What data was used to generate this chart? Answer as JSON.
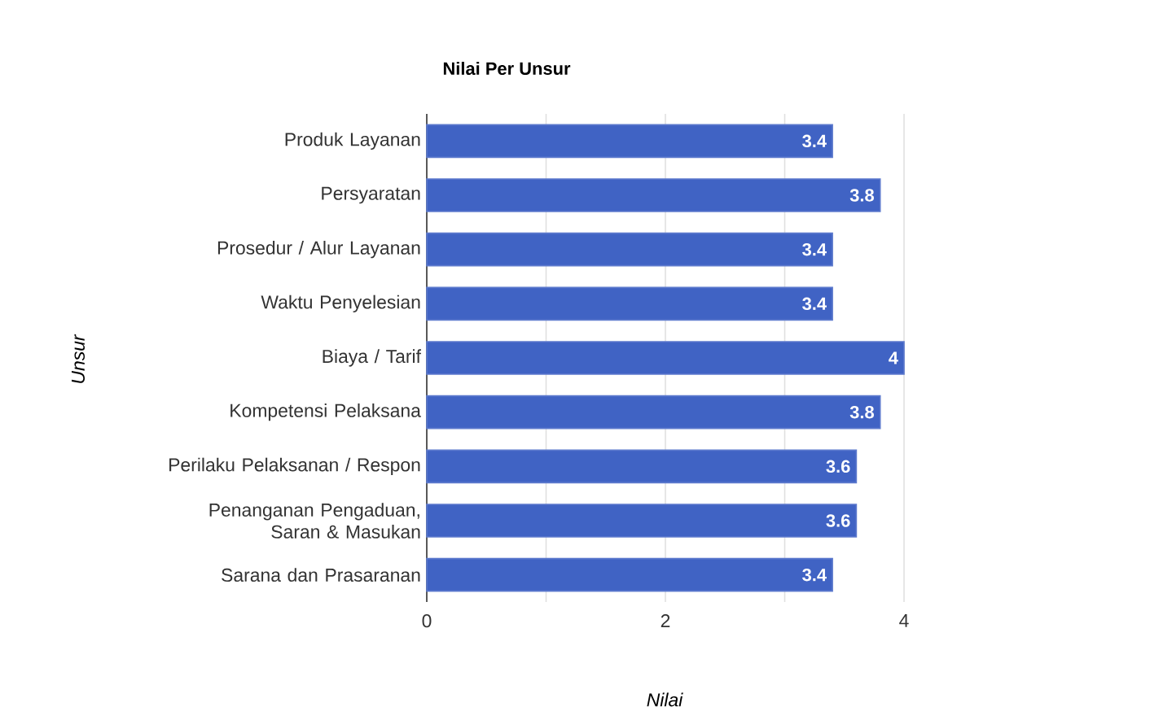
{
  "chart_data": {
    "type": "bar",
    "orientation": "horizontal",
    "title": "Nilai Per Unsur",
    "xlabel": "Nilai",
    "ylabel": "Unsur",
    "categories": [
      "Produk Layanan",
      "Persyaratan",
      "Prosedur / Alur Layanan",
      "Waktu Penyelesian",
      "Biaya / Tarif",
      "Kompetensi Pelaksana",
      "Perilaku Pelaksanan / Respon",
      "Penanganan Pengaduan, Saran & Masukan",
      "Sarana dan Prasaranan"
    ],
    "values": [
      3.4,
      3.8,
      3.4,
      3.4,
      4,
      3.8,
      3.6,
      3.6,
      3.4
    ],
    "color": "#4063c4",
    "xlim": [
      0,
      4
    ],
    "xticks": [
      0,
      {
        "value": 1,
        "label": null
      },
      2,
      {
        "value": 3,
        "label": null
      },
      4
    ],
    "grid": "x",
    "data_labels": true
  }
}
